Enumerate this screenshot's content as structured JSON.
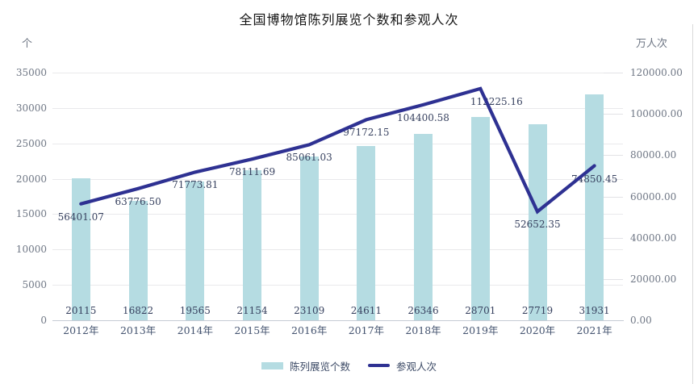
{
  "chart_data": {
    "type": "bar+line",
    "title": "全国博物馆陈列展览个数和参观人次",
    "categories": [
      "2012年",
      "2013年",
      "2014年",
      "2015年",
      "2016年",
      "2017年",
      "2018年",
      "2019年",
      "2020年",
      "2021年"
    ],
    "series": [
      {
        "name": "陈列展览个数",
        "type": "bar",
        "axis": "left",
        "color": "#b5dce2",
        "values": [
          20115,
          16822,
          19565,
          21154,
          23109,
          24611,
          26346,
          28701,
          27719,
          31931
        ]
      },
      {
        "name": "参观人次",
        "type": "line",
        "axis": "right",
        "color": "#2e3192",
        "values": [
          56401.07,
          63776.5,
          71773.81,
          78111.69,
          85061.03,
          97172.15,
          104400.58,
          112225.16,
          52652.35,
          74850.45
        ],
        "labels": [
          "56401.07",
          "63776.50",
          "71773.81",
          "78111.69",
          "85061.03",
          "97172.15",
          "104400.58",
          "112225.16",
          "52652.35",
          "74850.45"
        ]
      }
    ],
    "left_axis": {
      "unit": "个",
      "min": 0,
      "max": 35000,
      "step": 5000,
      "ticks": [
        "0",
        "5000",
        "10000",
        "15000",
        "20000",
        "25000",
        "30000",
        "35000"
      ]
    },
    "right_axis": {
      "unit": "万人次",
      "min": 0,
      "max": 120000,
      "step": 20000,
      "ticks": [
        "0.00",
        "20000.00",
        "40000.00",
        "60000.00",
        "80000.00",
        "100000.00",
        "120000.00"
      ]
    },
    "grid": true,
    "legend_position": "bottom"
  }
}
